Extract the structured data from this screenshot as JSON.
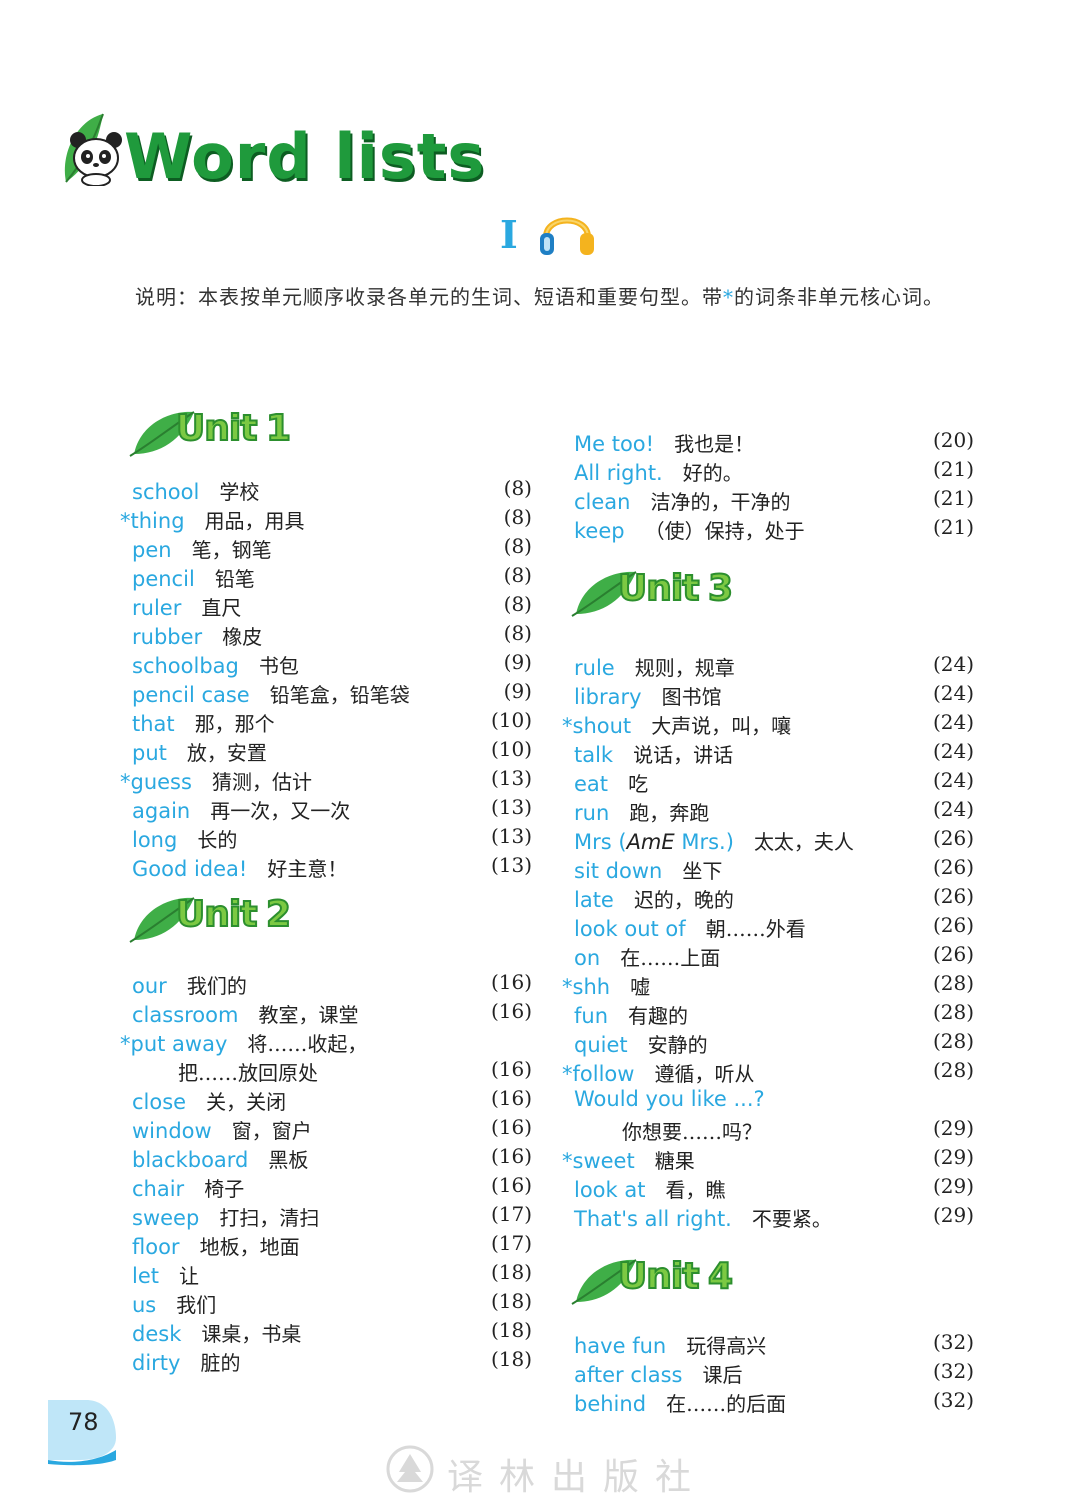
{
  "title": "Word lists",
  "section": "I",
  "note": {
    "before": "说明：本表按单元顺序收录各单元的生词、短语和重要句型。带",
    "star": "*",
    "after": "的词条非单元核心词。"
  },
  "units": [
    {
      "label": "Unit",
      "number": "1",
      "entries": [
        {
          "en": "school",
          "zh": "学校",
          "page": "(8)"
        },
        {
          "en": "*thing",
          "zh": "用品，用具",
          "page": "(8)"
        },
        {
          "en": "pen",
          "zh": "笔，钢笔",
          "page": "(8)"
        },
        {
          "en": "pencil",
          "zh": "铅笔",
          "page": "(8)"
        },
        {
          "en": "ruler",
          "zh": "直尺",
          "page": "(8)"
        },
        {
          "en": "rubber",
          "zh": "橡皮",
          "page": "(8)"
        },
        {
          "en": "schoolbag",
          "zh": "书包",
          "page": "(9)"
        },
        {
          "en": "pencil case",
          "zh": "铅笔盒，铅笔袋",
          "page": "(9)"
        },
        {
          "en": "that",
          "zh": "那，那个",
          "page": "(10)"
        },
        {
          "en": "put",
          "zh": "放，安置",
          "page": "(10)"
        },
        {
          "en": "*guess",
          "zh": "猜测，估计",
          "page": "(13)"
        },
        {
          "en": "again",
          "zh": "再一次，又一次",
          "page": "(13)"
        },
        {
          "en": "long",
          "zh": "长的",
          "page": "(13)"
        },
        {
          "en": "Good idea!",
          "zh": "好主意！",
          "page": "(13)"
        }
      ]
    },
    {
      "label": "Unit",
      "number": "2",
      "entries": [
        {
          "en": "our",
          "zh": "我们的",
          "page": "(16)"
        },
        {
          "en": "classroom",
          "zh": "教室，课堂",
          "page": "(16)"
        },
        {
          "en": "*put away",
          "zh": "将……收起，",
          "page": ""
        },
        {
          "en": "",
          "zh": "把……放回原处",
          "page": "(16)"
        },
        {
          "en": "close",
          "zh": "关，关闭",
          "page": "(16)"
        },
        {
          "en": "window",
          "zh": "窗，窗户",
          "page": "(16)"
        },
        {
          "en": "blackboard",
          "zh": "黑板",
          "page": "(16)"
        },
        {
          "en": "chair",
          "zh": "椅子",
          "page": "(16)"
        },
        {
          "en": "sweep",
          "zh": "打扫，清扫",
          "page": "(17)"
        },
        {
          "en": "floor",
          "zh": "地板，地面",
          "page": "(17)"
        },
        {
          "en": "let",
          "zh": "让",
          "page": "(18)"
        },
        {
          "en": "us",
          "zh": "我们",
          "page": "(18)"
        },
        {
          "en": "desk",
          "zh": "课桌，书桌",
          "page": "(18)"
        },
        {
          "en": "dirty",
          "zh": "脏的",
          "page": "(18)"
        }
      ]
    },
    {
      "label": "Unit",
      "number": "3",
      "entries": [
        {
          "en": "rule",
          "zh": "规则，规章",
          "page": "(24)"
        },
        {
          "en": "library",
          "zh": "图书馆",
          "page": "(24)"
        },
        {
          "en": "*shout",
          "zh": "大声说，叫，嚷",
          "page": "(24)"
        },
        {
          "en": "talk",
          "zh": "说话，讲话",
          "page": "(24)"
        },
        {
          "en": "eat",
          "zh": "吃",
          "page": "(24)"
        },
        {
          "en": "run",
          "zh": "跑，奔跑",
          "page": "(24)"
        },
        {
          "en": "Mrs (AmE Mrs.)",
          "zh": "太太，夫人",
          "page": "(26)"
        },
        {
          "en": "sit down",
          "zh": "坐下",
          "page": "(26)"
        },
        {
          "en": "late",
          "zh": "迟的，晚的",
          "page": "(26)"
        },
        {
          "en": "look out of",
          "zh": "朝……外看",
          "page": "(26)"
        },
        {
          "en": "on",
          "zh": "在……上面",
          "page": "(26)"
        },
        {
          "en": "*shh",
          "zh": "嘘",
          "page": "(28)"
        },
        {
          "en": "fun",
          "zh": "有趣的",
          "page": "(28)"
        },
        {
          "en": "quiet",
          "zh": "安静的",
          "page": "(28)"
        },
        {
          "en": "*follow",
          "zh": "遵循，听从",
          "page": "(28)"
        },
        {
          "en": "Would you like ...?",
          "zh": "",
          "page": ""
        },
        {
          "en": "",
          "zh": "你想要……吗？",
          "page": "(29)"
        },
        {
          "en": "*sweet",
          "zh": "糖果",
          "page": "(29)"
        },
        {
          "en": "look at",
          "zh": "看，瞧",
          "page": "(29)"
        },
        {
          "en": "That's all right.",
          "zh": "不要紧。",
          "page": "(29)"
        }
      ]
    },
    {
      "label": "Unit",
      "number": "4",
      "entries": [
        {
          "en": "have fun",
          "zh": "玩得高兴",
          "page": "(32)"
        },
        {
          "en": "after class",
          "zh": "课后",
          "page": "(32)"
        },
        {
          "en": "behind",
          "zh": "在……的后面",
          "page": "(32)"
        }
      ]
    }
  ],
  "unit2_continued": [
    {
      "en": "Me too!",
      "zh": "我也是！",
      "page": "(20)"
    },
    {
      "en": "All right.",
      "zh": "好的。",
      "page": "(21)"
    },
    {
      "en": "clean",
      "zh": "洁净的，干净的",
      "page": "(21)"
    },
    {
      "en": "keep",
      "zh": "（使）保持，处于",
      "page": "(21)"
    }
  ],
  "page_number": "78",
  "publisher": "译林出版社",
  "colors": {
    "accent": "#2aa8e0",
    "green": "#1f9a3c",
    "unit_fill": "#7cc943"
  },
  "icons": [
    "panda-icon",
    "leaf-icon",
    "headphones-icon",
    "publisher-logo-icon"
  ]
}
